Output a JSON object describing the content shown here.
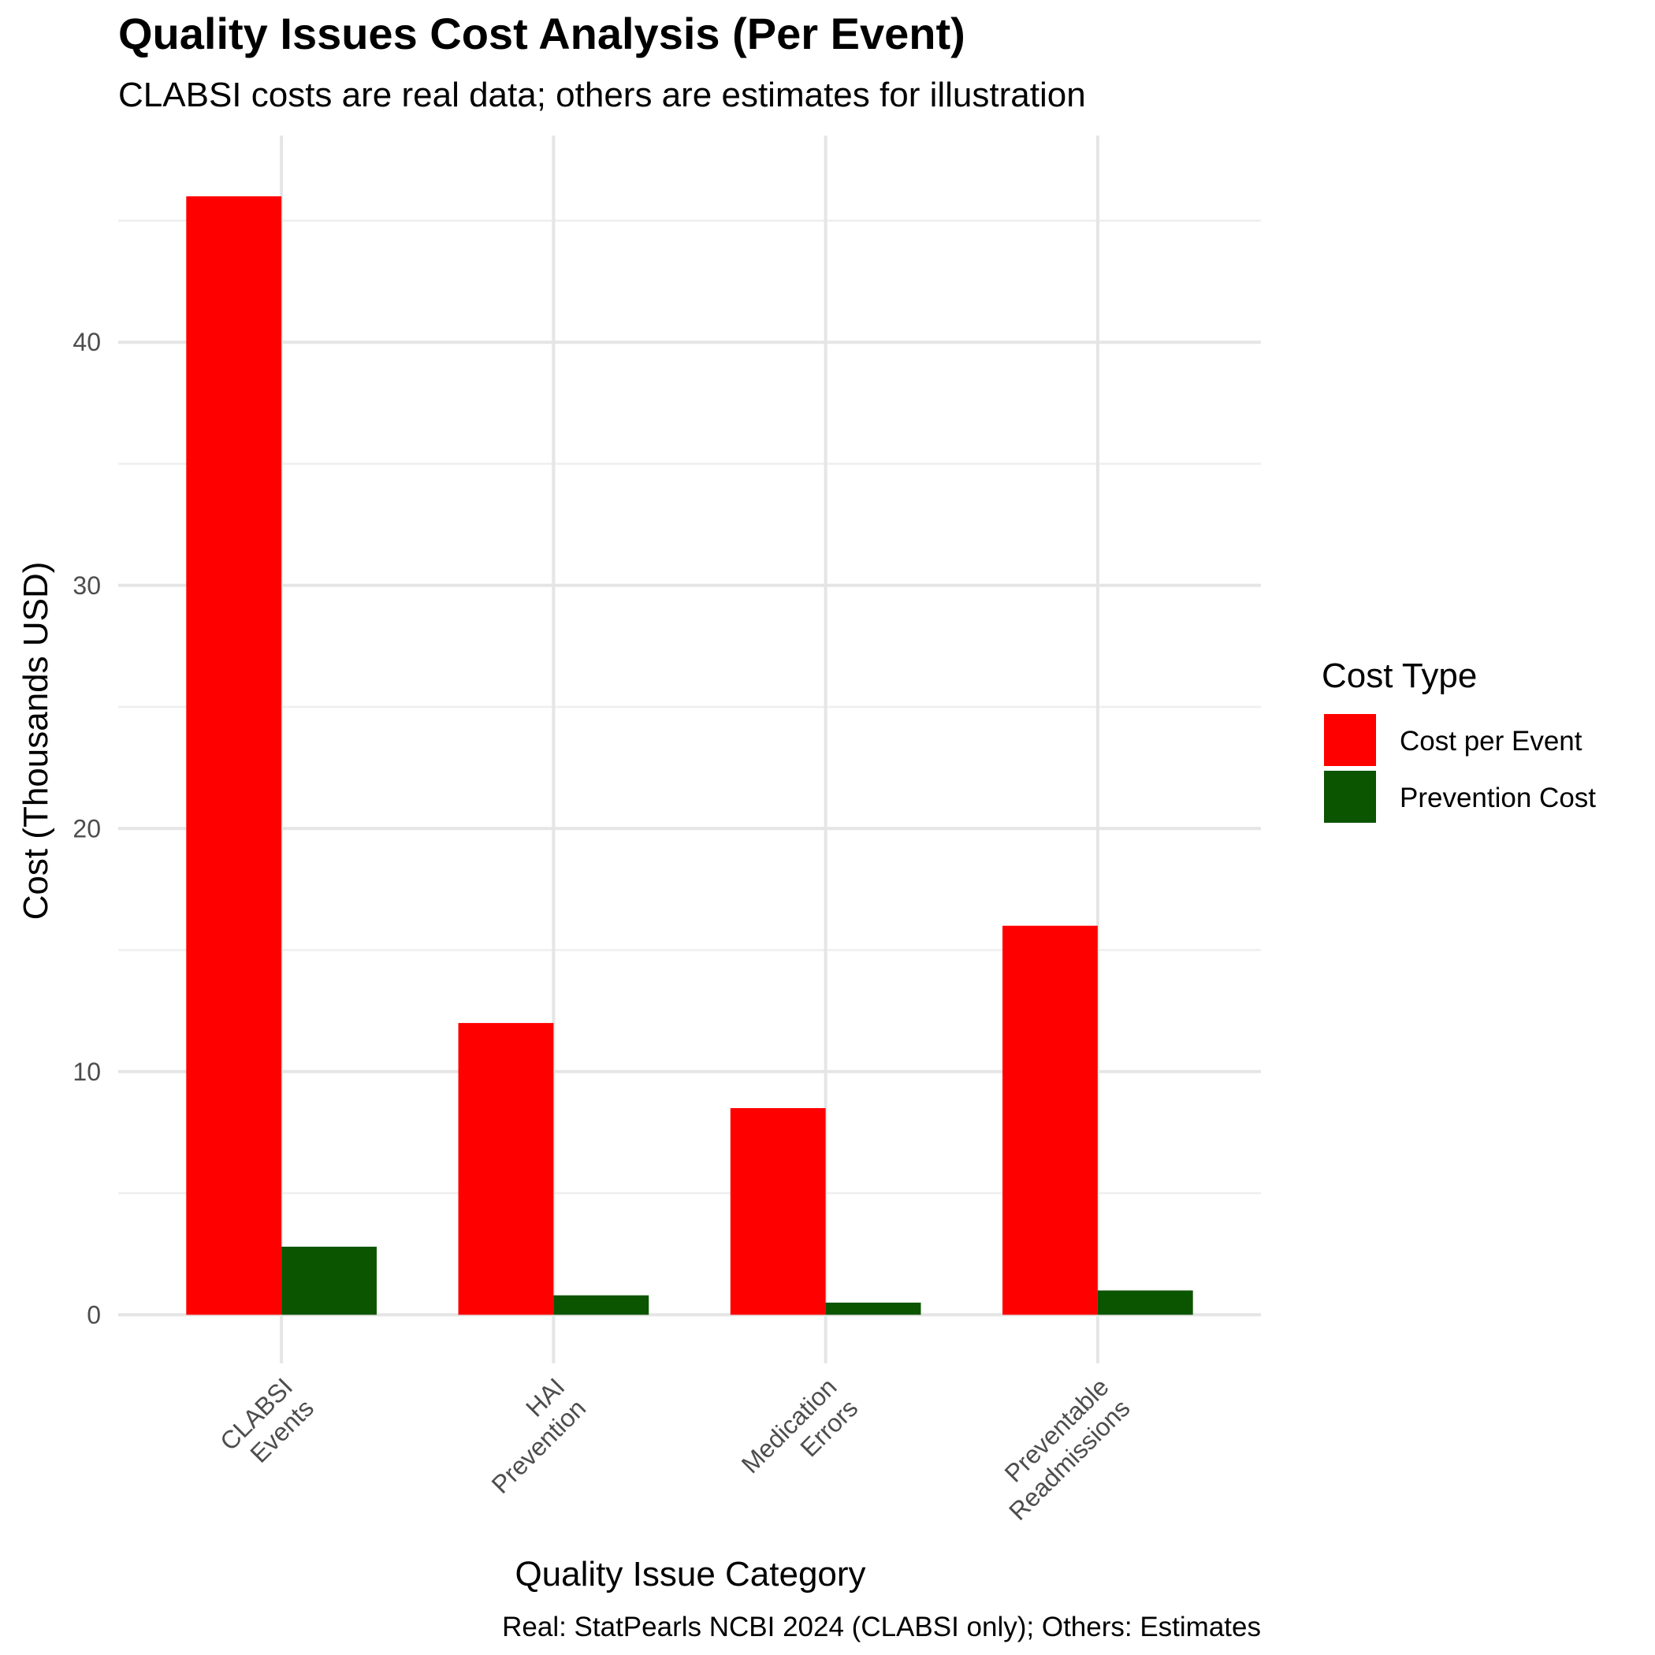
{
  "chart_data": {
    "type": "bar",
    "title": "Quality Issues Cost Analysis (Per Event)",
    "subtitle": "CLABSI costs are real data; others are estimates for illustration",
    "xlabel": "Quality Issue Category",
    "ylabel": "Cost (Thousands USD)",
    "caption": "Real: StatPearls NCBI 2024 (CLABSI only); Others: Estimates",
    "categories": [
      [
        "CLABSI",
        "Events"
      ],
      [
        "HAI",
        "Prevention"
      ],
      [
        "Medication",
        "Errors"
      ],
      [
        "Preventable",
        "Readmissions"
      ]
    ],
    "series": [
      {
        "name": "Cost per Event",
        "color": "#ff0000",
        "values": [
          46,
          12,
          8.5,
          16
        ]
      },
      {
        "name": "Prevention Cost",
        "color": "#0b5400",
        "values": [
          2.8,
          0.8,
          0.5,
          1.0
        ]
      }
    ],
    "ylim": [
      -2,
      48.5
    ],
    "yticks": [
      0,
      10,
      20,
      30,
      40
    ],
    "grid": true,
    "legend": {
      "title": "Cost Type",
      "position": "right"
    }
  }
}
